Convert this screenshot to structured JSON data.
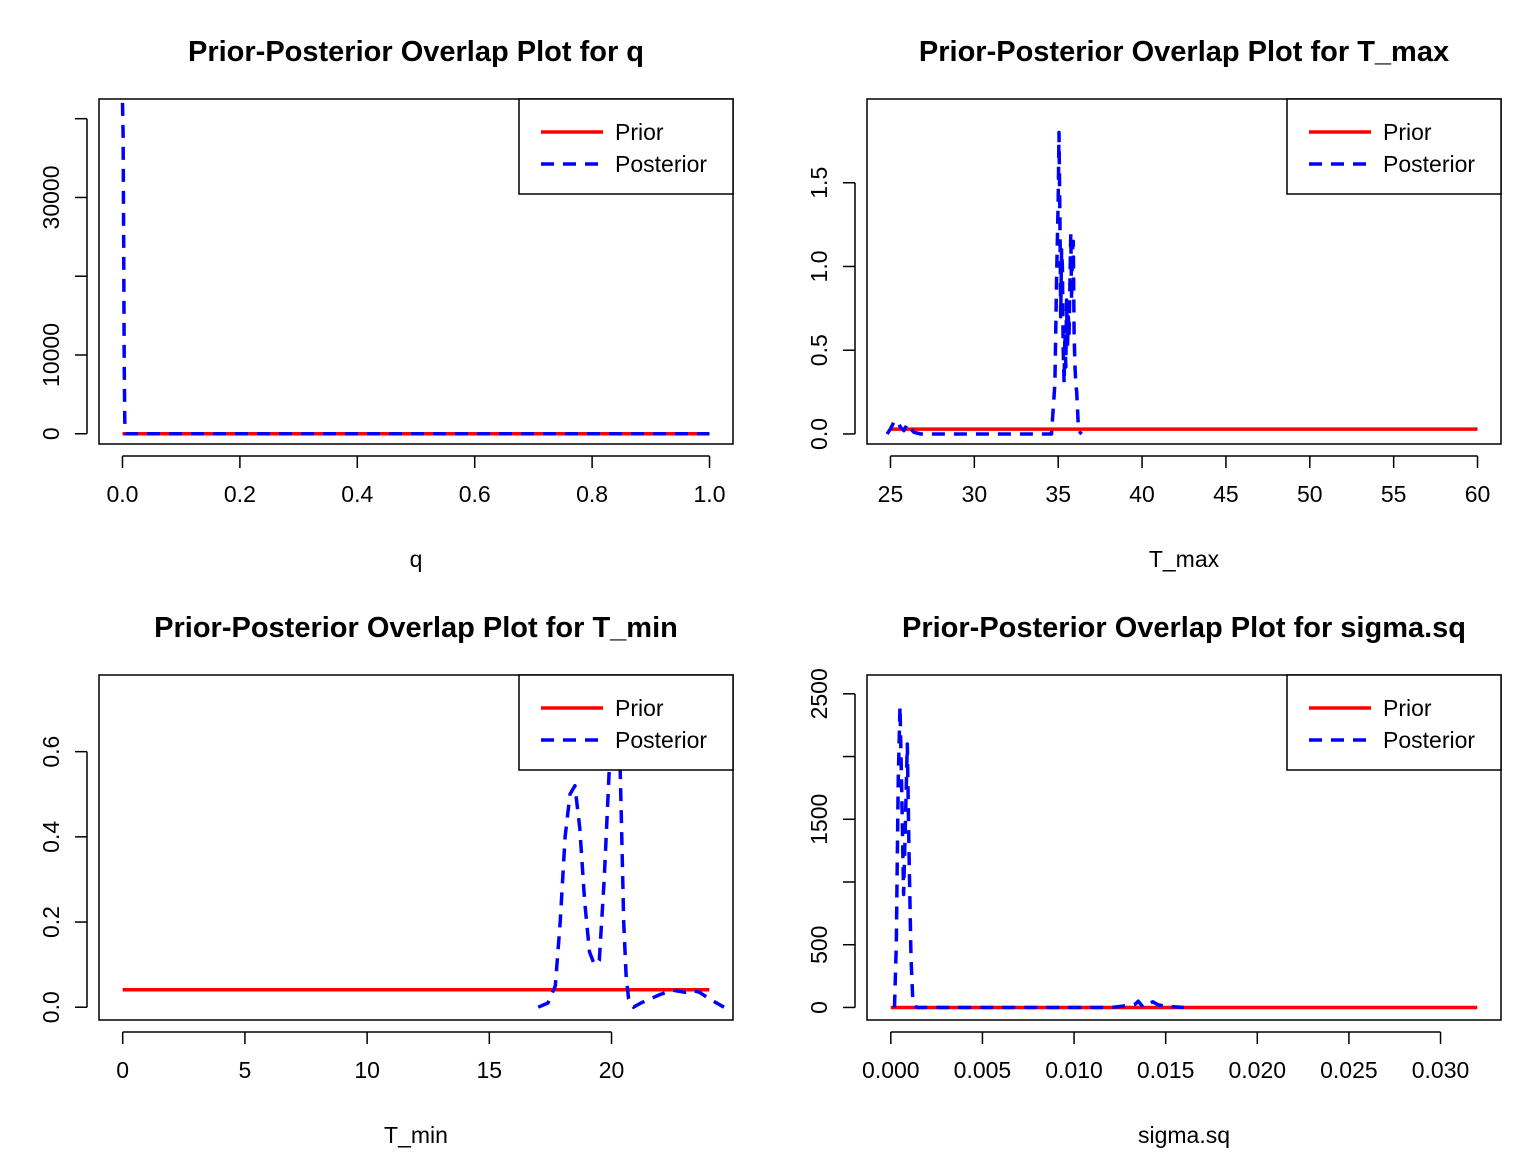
{
  "colors": {
    "prior": "#ff0000",
    "posterior": "#0000ff"
  },
  "chart_data": [
    {
      "type": "line",
      "title": "Prior-Posterior Overlap Plot for q",
      "xlabel": "q",
      "ylabel": "",
      "xlim": [
        -0.04,
        1.04
      ],
      "ylim": [
        -1300,
        42500
      ],
      "xticks": [
        0.0,
        0.2,
        0.4,
        0.6,
        0.8,
        1.0
      ],
      "xtick_labels": [
        "0.0",
        "0.2",
        "0.4",
        "0.6",
        "0.8",
        "1.0"
      ],
      "yticks": [
        0,
        10000,
        20000,
        30000,
        40000
      ],
      "ytick_labels": [
        "0",
        "10000",
        "",
        "30000",
        ""
      ],
      "legend": {
        "position": "top-right",
        "entries": [
          "Prior",
          "Posterior"
        ]
      },
      "series": [
        {
          "name": "Prior",
          "style": "solid",
          "x": [
            0.0,
            1.0
          ],
          "y": [
            1,
            1
          ]
        },
        {
          "name": "Posterior",
          "style": "dashed",
          "x": [
            0.0,
            0.001,
            0.002,
            0.003,
            0.004,
            0.006,
            0.02,
            0.2,
            0.4,
            0.6,
            0.8,
            1.0
          ],
          "y": [
            42000,
            38000,
            24000,
            9000,
            1500,
            0,
            0,
            0,
            0,
            0,
            0,
            0
          ]
        }
      ]
    },
    {
      "type": "line",
      "title": "Prior-Posterior Overlap Plot for T_max",
      "xlabel": "T_max",
      "ylabel": "",
      "xlim": [
        23.6,
        61.4
      ],
      "ylim": [
        -0.06,
        2.0
      ],
      "xticks": [
        25,
        30,
        35,
        40,
        45,
        50,
        55,
        60
      ],
      "xtick_labels": [
        "25",
        "30",
        "35",
        "40",
        "45",
        "50",
        "55",
        "60"
      ],
      "yticks": [
        0.0,
        0.5,
        1.0,
        1.5
      ],
      "ytick_labels": [
        "0.0",
        "0.5",
        "1.0",
        "1.5"
      ],
      "legend": {
        "position": "top-right",
        "entries": [
          "Prior",
          "Posterior"
        ]
      },
      "series": [
        {
          "name": "Prior",
          "style": "solid",
          "x": [
            25,
            60
          ],
          "y": [
            0.029,
            0.029
          ]
        },
        {
          "name": "Posterior",
          "style": "dashed",
          "x": [
            24.8,
            25.0,
            25.2,
            25.4,
            25.6,
            25.8,
            26.0,
            26.2,
            26.4,
            26.8,
            28,
            30,
            32,
            34,
            34.6,
            34.8,
            34.9,
            35.0,
            35.05,
            35.1,
            35.15,
            35.2,
            35.25,
            35.3,
            35.35,
            35.4,
            35.45,
            35.5,
            35.55,
            35.6,
            35.65,
            35.7,
            35.75,
            35.8,
            35.85,
            35.9,
            35.95,
            36.0,
            36.05,
            36.1,
            36.15,
            36.2,
            36.3,
            36.4
          ],
          "y": [
            0.0,
            0.03,
            0.07,
            0.08,
            0.04,
            0.02,
            0.06,
            0.03,
            0.01,
            0.0,
            0.0,
            0.0,
            0.0,
            0.0,
            0.0,
            0.3,
            0.9,
            1.4,
            1.8,
            1.3,
            0.7,
            1.1,
            1.0,
            0.5,
            0.3,
            0.6,
            0.4,
            0.8,
            0.5,
            0.7,
            0.6,
            0.9,
            1.2,
            0.8,
            1.1,
            1.15,
            0.6,
            0.4,
            0.3,
            0.25,
            0.15,
            0.05,
            0.01,
            0.0
          ]
        }
      ]
    },
    {
      "type": "line",
      "title": "Prior-Posterior Overlap Plot for T_min",
      "xlabel": "T_min",
      "ylabel": "",
      "xlim": [
        -0.97,
        24.97
      ],
      "ylim": [
        -0.03,
        0.78
      ],
      "xticks": [
        0,
        5,
        10,
        15,
        20
      ],
      "xtick_labels": [
        "0",
        "5",
        "10",
        "15",
        "20"
      ],
      "yticks": [
        0.0,
        0.2,
        0.4,
        0.6
      ],
      "ytick_labels": [
        "0.0",
        "0.2",
        "0.4",
        "0.6"
      ],
      "legend": {
        "position": "top-right",
        "entries": [
          "Prior",
          "Posterior"
        ]
      },
      "series": [
        {
          "name": "Prior",
          "style": "solid",
          "x": [
            0,
            24
          ],
          "y": [
            0.041,
            0.041
          ]
        },
        {
          "name": "Posterior",
          "style": "dashed",
          "x": [
            17.0,
            17.4,
            17.7,
            17.9,
            18.1,
            18.3,
            18.5,
            18.7,
            18.9,
            19.1,
            19.3,
            19.5,
            19.7,
            19.9,
            20.0,
            20.1,
            20.2,
            20.3,
            20.4,
            20.5,
            20.6,
            20.7,
            20.9,
            21.2,
            21.6,
            22.0,
            22.5,
            23.0,
            23.3,
            23.6,
            24.0,
            24.3,
            24.6
          ],
          "y": [
            0.0,
            0.01,
            0.05,
            0.2,
            0.4,
            0.5,
            0.52,
            0.42,
            0.25,
            0.13,
            0.1,
            0.11,
            0.3,
            0.55,
            0.65,
            0.72,
            0.75,
            0.68,
            0.45,
            0.2,
            0.07,
            0.02,
            0.0,
            0.01,
            0.02,
            0.03,
            0.04,
            0.035,
            0.04,
            0.035,
            0.02,
            0.01,
            0.0
          ]
        }
      ]
    },
    {
      "type": "line",
      "title": "Prior-Posterior Overlap Plot for sigma.sq",
      "xlabel": "sigma.sq",
      "ylabel": "",
      "xlim": [
        -0.0013,
        0.0333
      ],
      "ylim": [
        -100,
        2650
      ],
      "xticks": [
        0.0,
        0.005,
        0.01,
        0.015,
        0.02,
        0.025,
        0.03
      ],
      "xtick_labels": [
        "0.000",
        "0.005",
        "0.010",
        "0.015",
        "0.020",
        "0.025",
        "0.030"
      ],
      "yticks": [
        0,
        500,
        1000,
        1500,
        2000,
        2500
      ],
      "ytick_labels": [
        "0",
        "500",
        "",
        "1500",
        "",
        "2500"
      ],
      "legend": {
        "position": "top-right",
        "entries": [
          "Prior",
          "Posterior"
        ]
      },
      "series": [
        {
          "name": "Prior",
          "style": "solid",
          "x": [
            0.0,
            0.032
          ],
          "y": [
            0,
            0
          ]
        },
        {
          "name": "Posterior",
          "style": "dashed",
          "x": [
            0.0002,
            0.0003,
            0.0004,
            0.0005,
            0.0006,
            0.0007,
            0.0008,
            0.0009,
            0.001,
            0.0011,
            0.0012,
            0.0014,
            0.002,
            0.004,
            0.006,
            0.008,
            0.01,
            0.012,
            0.0133,
            0.0135,
            0.0137,
            0.0139,
            0.0141,
            0.0143,
            0.0146,
            0.015,
            0.016
          ],
          "y": [
            0,
            500,
            1800,
            2400,
            1700,
            900,
            1500,
            2100,
            1200,
            400,
            60,
            0,
            0,
            0,
            0,
            0,
            0,
            0,
            20,
            50,
            15,
            40,
            30,
            45,
            20,
            10,
            0
          ]
        }
      ]
    }
  ]
}
